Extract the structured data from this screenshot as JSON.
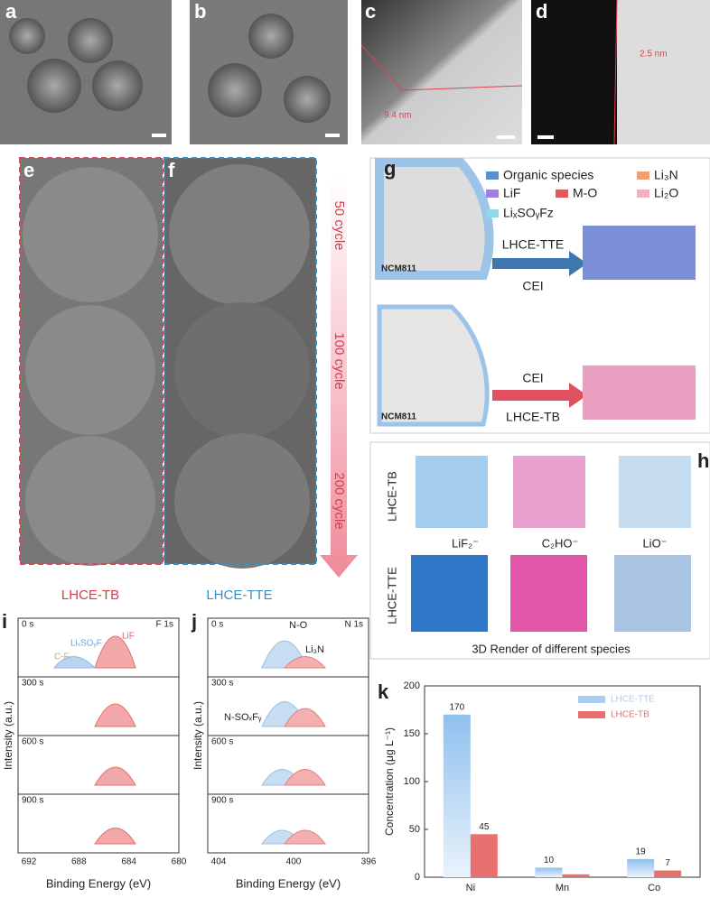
{
  "panels": {
    "a": "a",
    "b": "b",
    "c": "c",
    "d": "d",
    "e": "e",
    "f": "f",
    "g": "g",
    "h": "h",
    "i": "i",
    "j": "j",
    "k": "k"
  },
  "tem": {
    "c_thickness": "9.4 nm",
    "d_thickness": "2.5 nm"
  },
  "e": {
    "cycles": [
      "50 cycle",
      "100 cycle",
      "200 cycle"
    ],
    "left": "LHCE-TB",
    "right": "LHCE-TTE"
  },
  "g": {
    "legend": [
      "Organic species",
      "LiF",
      "LiₓSOᵧFz",
      "Li₃N",
      "M-O",
      "Li₂O"
    ],
    "top_arrow_top": "LHCE-TTE",
    "top_arrow_bottom": "CEI",
    "bottom_arrow_top": "CEI",
    "bottom_arrow_bottom": "LHCE-TB",
    "sample_top": "NCM811",
    "sample_bottom": "NCM811"
  },
  "h": {
    "rows": [
      "LHCE-TB",
      "LHCE-TTE"
    ],
    "species": [
      "LiF₂⁻",
      "C₂HO⁻",
      "LiO⁻"
    ],
    "caption": "3D Render of different species"
  },
  "i": {
    "times": [
      "0 s",
      "300 s",
      "600 s",
      "900 s"
    ],
    "edge": "F 1s",
    "peaks": [
      "LiF",
      "LiₓSOᵧF",
      "C-F"
    ],
    "xticks": [
      "692",
      "688",
      "684",
      "680"
    ],
    "xlabel": "Binding Energy (eV)",
    "ylabel": "Intensity (a.u.)"
  },
  "j": {
    "times": [
      "0 s",
      "300 s",
      "600 s",
      "900 s"
    ],
    "edge": "N 1s",
    "peaks": [
      "N-O",
      "Li₃N",
      "N-SOₓFᵧ"
    ],
    "xticks": [
      "404",
      "400",
      "396"
    ],
    "xlabel": "Binding Energy (eV)",
    "ylabel": "Intensity (a.u.)"
  },
  "chart_data": {
    "type": "bar",
    "categories": [
      "Ni",
      "Mn",
      "Co"
    ],
    "ylabel": "Concentration (μg L⁻¹)",
    "series": [
      {
        "name": "LHCE-TTE",
        "color": "#a9cdef",
        "values": [
          170,
          10,
          19
        ]
      },
      {
        "name": "LHCE-TB",
        "color": "#e8706e",
        "values": [
          45,
          3,
          7
        ],
        "value_labels": [
          "45",
          null,
          "7"
        ]
      }
    ],
    "ylim": [
      0,
      200
    ],
    "yticks": [
      0,
      50,
      100,
      150,
      200
    ]
  }
}
